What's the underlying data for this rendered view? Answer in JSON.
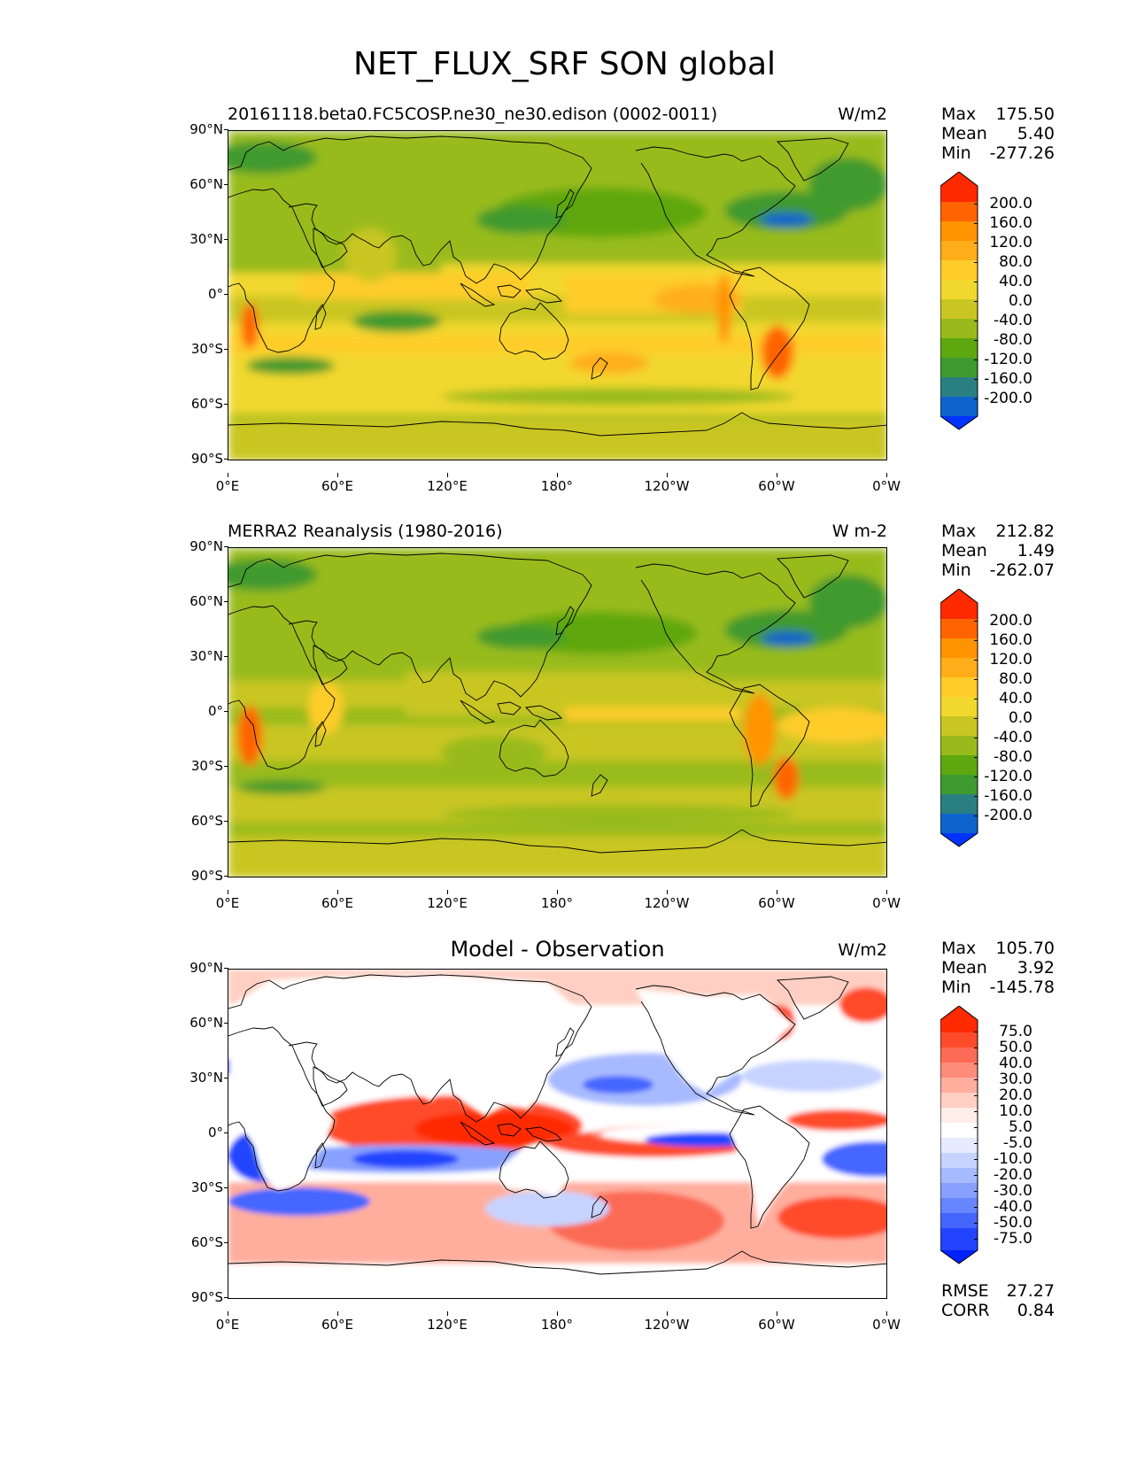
{
  "figure": {
    "title": "NET_FLUX_SRF SON global"
  },
  "axes": {
    "lat_ticks": [
      "90°N",
      "60°N",
      "30°N",
      "0°",
      "30°S",
      "60°S",
      "90°S"
    ],
    "lon_ticks": [
      "0°E",
      "60°E",
      "120°E",
      "180°",
      "120°W",
      "60°W",
      "0°W"
    ]
  },
  "panels": [
    {
      "title": "20161118.beta0.FC5COSP.ne30_ne30.edison (0002-0011)",
      "title_style": "left",
      "units": "W/m2",
      "stats": [
        {
          "label": "Max",
          "value": "175.50"
        },
        {
          "label": "Mean",
          "value": "5.40"
        },
        {
          "label": "Min",
          "value": "-277.26"
        }
      ],
      "colorbar_labels": [
        "200.0",
        "160.0",
        "120.0",
        "80.0",
        "40.0",
        "0.0",
        "-40.0",
        "-80.0",
        "-120.0",
        "-160.0",
        "-200.0"
      ]
    },
    {
      "title": "MERRA2 Reanalysis (1980-2016)",
      "title_style": "left",
      "units": "W m-2",
      "stats": [
        {
          "label": "Max",
          "value": "212.82"
        },
        {
          "label": "Mean",
          "value": "1.49"
        },
        {
          "label": "Min",
          "value": "-262.07"
        }
      ],
      "colorbar_labels": [
        "200.0",
        "160.0",
        "120.0",
        "80.0",
        "40.0",
        "0.0",
        "-40.0",
        "-80.0",
        "-120.0",
        "-160.0",
        "-200.0"
      ]
    },
    {
      "title": "Model - Observation",
      "title_style": "center",
      "units": "W/m2",
      "stats": [
        {
          "label": "Max",
          "value": "105.70"
        },
        {
          "label": "Mean",
          "value": "3.92"
        },
        {
          "label": "Min",
          "value": "-145.78"
        }
      ],
      "colorbar_labels": [
        "75.0",
        "50.0",
        "40.0",
        "30.0",
        "20.0",
        "10.0",
        "5.0",
        "-5.0",
        "-10.0",
        "-20.0",
        "-30.0",
        "-40.0",
        "-50.0",
        "-75.0"
      ],
      "extra_stats": [
        {
          "label": "RMSE",
          "value": "27.27"
        },
        {
          "label": "CORR",
          "value": "0.84"
        }
      ]
    }
  ],
  "colors": {
    "field_cmap": [
      "#ff2a00",
      "#ff6400",
      "#ff9300",
      "#ffae1a",
      "#fecd2a",
      "#f2d82e",
      "#c9c623",
      "#98bb1b",
      "#5ea70f",
      "#3f9a2f",
      "#2a8080",
      "#0f63cc",
      "#0033ff"
    ],
    "diff_cmap": [
      "#ff2a00",
      "#ff4b2a",
      "#fb6b55",
      "#fd8c7a",
      "#ffae9e",
      "#ffcfc3",
      "#ffeeea",
      "#ffffff",
      "#e6ebff",
      "#c7d3ff",
      "#a8baff",
      "#88a0ff",
      "#6686ff",
      "#4466ff",
      "#2244ff",
      "#0022ff"
    ]
  }
}
